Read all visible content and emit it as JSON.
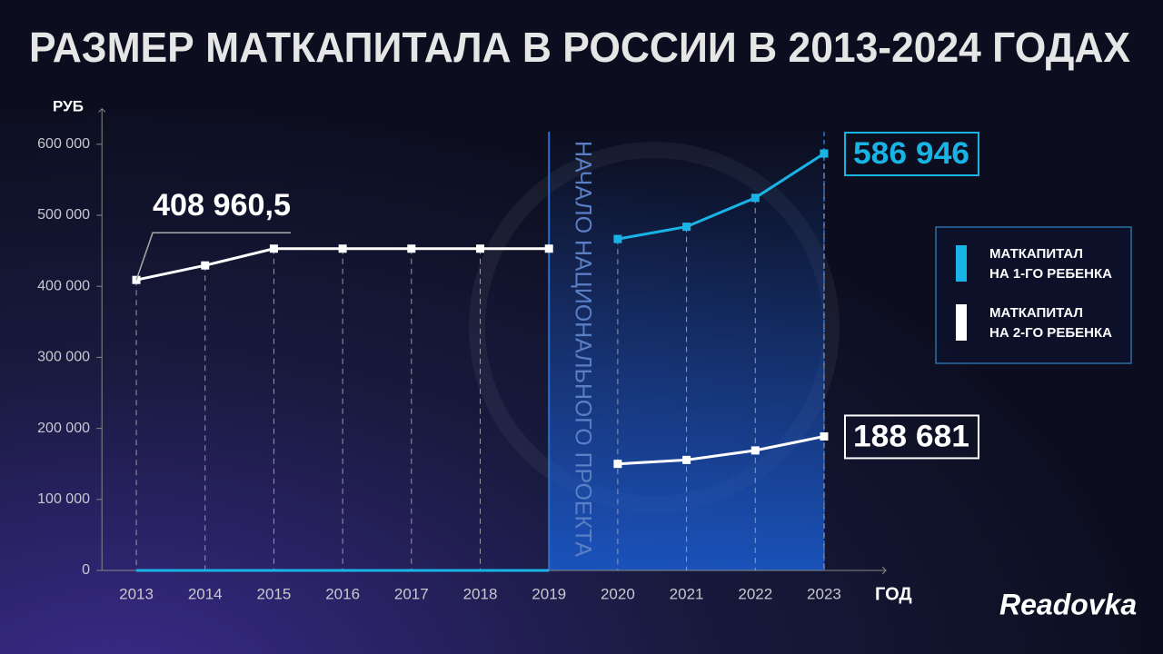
{
  "chart_data": {
    "type": "line",
    "title": "РАЗМЕР МАТКАПИТАЛА В РОССИИ В 2013-2024 ГОДАХ",
    "y_label": "РУБ",
    "x_label": "ГОД",
    "x": [
      2013,
      2014,
      2015,
      2016,
      2017,
      2018,
      2019,
      2020,
      2021,
      2022,
      2023
    ],
    "series": [
      {
        "name": "МАТКАПИТАЛ НА 1-ГО РЕБЕНКА",
        "color": "#19b4e6",
        "values": [
          0,
          0,
          0,
          0,
          0,
          0,
          0,
          466617,
          483882,
          524527,
          586946
        ],
        "value_labels": [
          null,
          null,
          null,
          null,
          null,
          null,
          null,
          null,
          null,
          null,
          "586 946"
        ]
      },
      {
        "name": "МАТКАПИТАЛ НА 2-ГО РЕБЕНКА",
        "color": "#ffffff",
        "values": [
          408960.5,
          429408.5,
          453026,
          453026,
          453026,
          453026,
          453026,
          150000,
          155550,
          168921,
          188681
        ],
        "value_labels": [
          "408 960,5",
          null,
          null,
          null,
          null,
          null,
          null,
          null,
          null,
          null,
          "188 681"
        ]
      }
    ],
    "annotations": [
      {
        "x": 2019,
        "text": "НАЧАЛО НАЦИОНАЛЬНОГО ПРОЕКТА"
      }
    ],
    "highlight_range": [
      2019,
      2023
    ],
    "xlim": [
      2012.5,
      2023.9
    ],
    "xticks": [
      2013,
      2014,
      2015,
      2016,
      2017,
      2018,
      2019,
      2020,
      2021,
      2022,
      2023
    ],
    "ylim": [
      0,
      650000
    ],
    "yticks": [
      0,
      {
        "value": 100000,
        "label": "100 000"
      },
      {
        "value": 200000,
        "label": "200 000"
      },
      {
        "value": 300000,
        "label": "300 000"
      },
      {
        "value": 400000,
        "label": "400 000"
      },
      {
        "value": 500000,
        "label": "500 000"
      },
      {
        "value": 600000,
        "label": "600 000"
      }
    ],
    "legend": "right",
    "brand": "Readovka"
  }
}
